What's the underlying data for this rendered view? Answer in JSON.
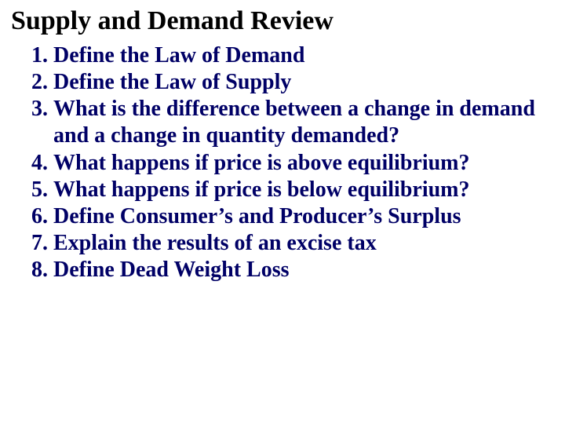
{
  "title": "Supply and Demand Review",
  "title_color": "#000000",
  "title_fontsize": 34,
  "list_color": "#000066",
  "list_fontsize": 28,
  "background_color": "#ffffff",
  "font_family": "Times New Roman",
  "questions": [
    "Define the Law of Demand",
    "Define the Law of Supply",
    "What is the difference between a change in demand and a change in quantity demanded?",
    "What happens if price is above equilibrium?",
    "What happens if price is below equilibrium?",
    "Define Consumer’s and Producer’s Surplus",
    "Explain the results of an excise tax",
    "Define Dead Weight Loss"
  ]
}
